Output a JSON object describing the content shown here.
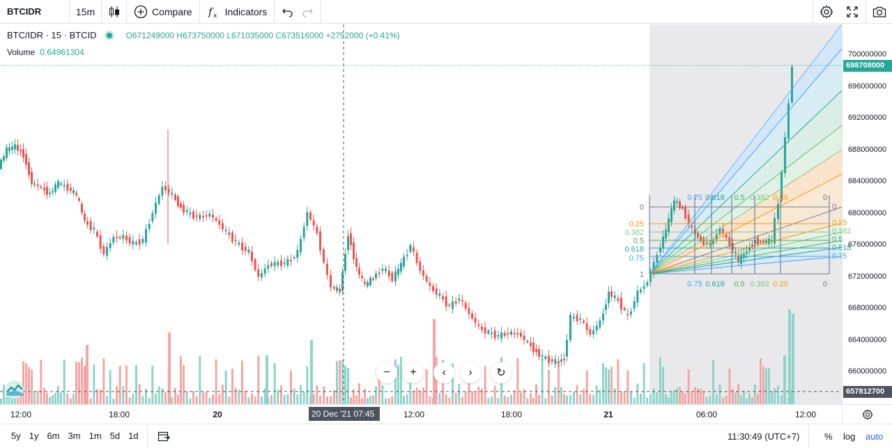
{
  "toolbar": {
    "symbol": "BTCIDR",
    "timeframe": "15m",
    "compare_label": "Compare",
    "indicators_label": "Indicators"
  },
  "legend": {
    "title": "BTC/IDR · 15 · BTCID",
    "ohlc": "O671249000  H673750000  L671035000  C673516000  +2752000 (+0.41%)",
    "volume_label": "Volume",
    "volume_value": "0.64961304"
  },
  "price_axis": {
    "labels": [
      "700000000",
      "696000000",
      "692000000",
      "688000000",
      "684000000",
      "680000000",
      "676000000",
      "672000000",
      "668000000",
      "664000000",
      "660000000"
    ],
    "last_price": "698708000",
    "crosshair_price": "657812700"
  },
  "time_axis": {
    "labels": [
      "12:00",
      "18:00",
      "20",
      "12:00",
      "18:00",
      "21",
      "06:00",
      "12:00"
    ],
    "crosshair_time": "20 Dec '21   07:45"
  },
  "fib_fan": {
    "levels": [
      "0",
      "0.25",
      "0.382",
      "0.5",
      "0.618",
      "0.75",
      "1"
    ],
    "top_labels": [
      "0.75",
      "0.618",
      "0.5",
      "0.382",
      "0.25",
      "0"
    ],
    "right_labels": [
      "0",
      "0.25",
      "0.382",
      "0.5",
      "0.618",
      "0.75"
    ]
  },
  "bottom": {
    "ranges": [
      "5y",
      "1y",
      "6m",
      "3m",
      "1m",
      "5d",
      "1d"
    ],
    "clock": "11:30:49 (UTC+7)",
    "percent": "%",
    "log": "log",
    "auto": "auto"
  },
  "colors": {
    "up": "#26a69a",
    "down": "#ef5350",
    "accent": "#2962ff"
  },
  "icons": [
    "candles-icon",
    "plus-circle-icon",
    "fx-icon",
    "undo-icon",
    "redo-icon",
    "settings-icon",
    "fullscreen-icon",
    "camera-icon",
    "goto-date-icon",
    "gear-icon",
    "zoom-out-icon",
    "zoom-in-icon",
    "scroll-left-icon",
    "scroll-right-icon",
    "reset-icon"
  ]
}
